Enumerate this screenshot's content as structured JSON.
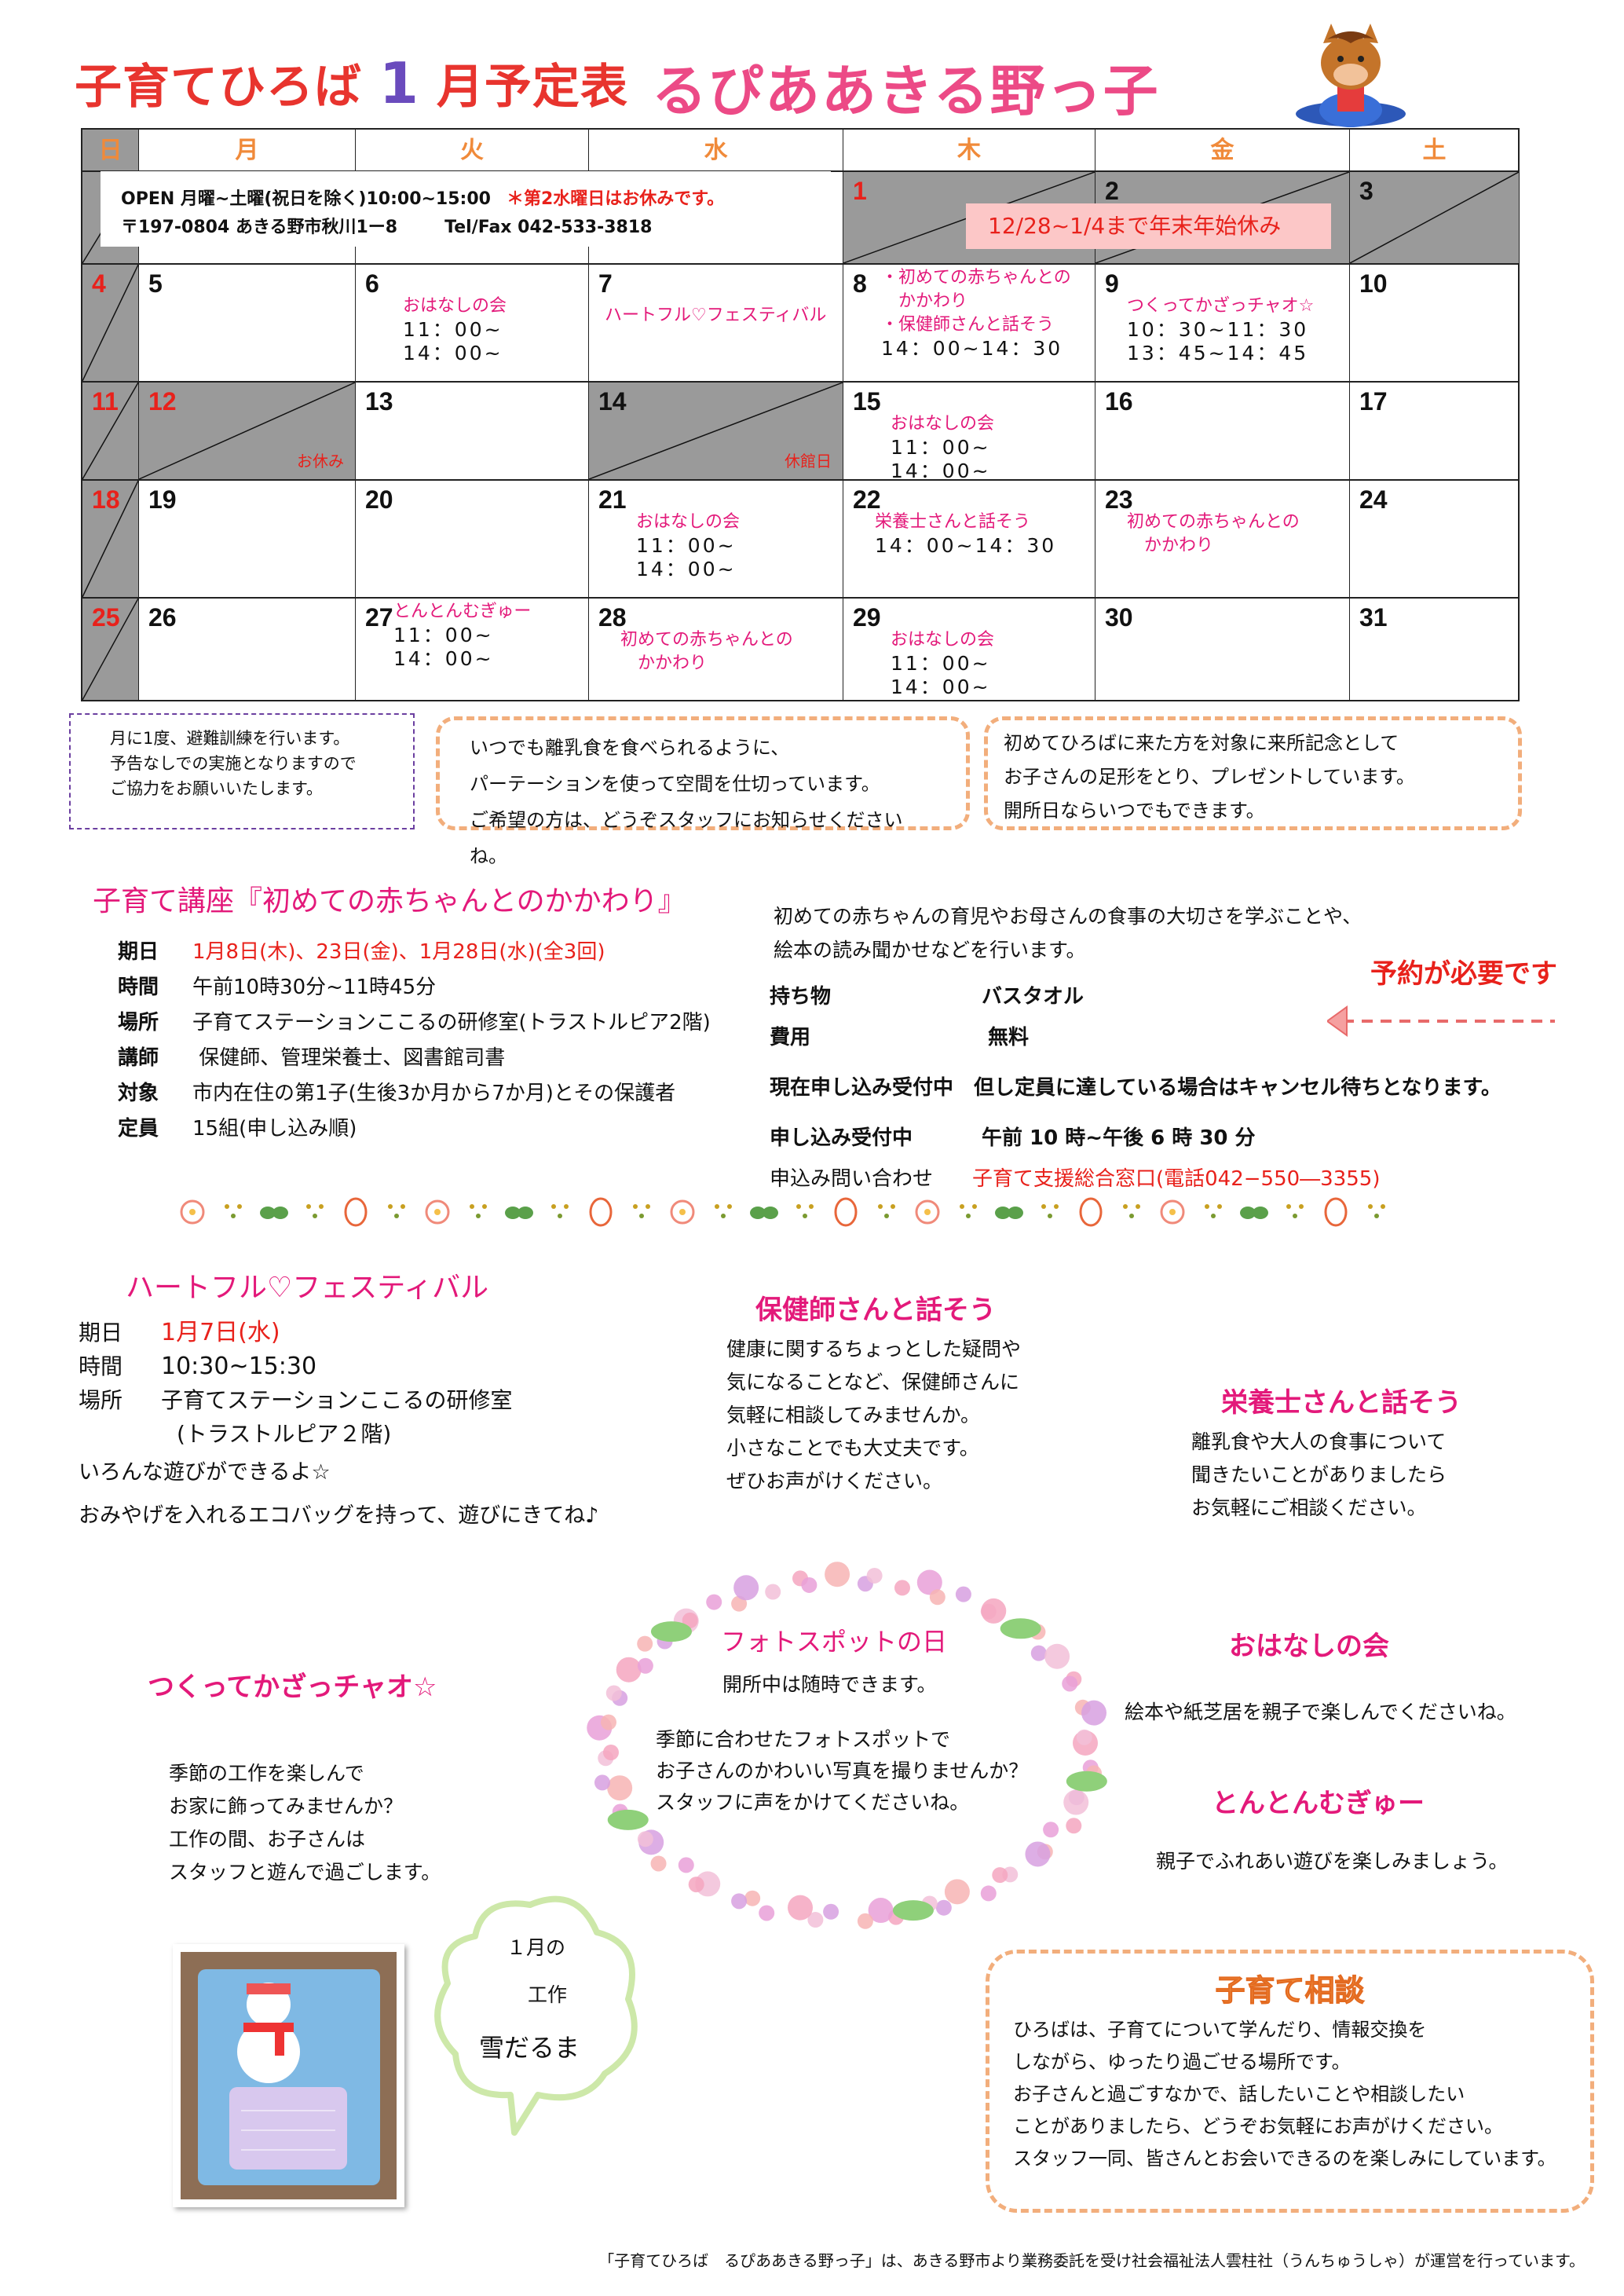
{
  "header": {
    "title_prefix": "子育てひろば",
    "title_month": "1",
    "title_suffix": "月予定表",
    "facility": "るぴああきる野っ子",
    "mascot_icon": "horse-mascot-icon"
  },
  "colors": {
    "pink": "#e3197a",
    "red": "#e8211b",
    "orange": "#f08a3a",
    "shade": "#9a9a9a"
  },
  "calendar": {
    "weekdays": [
      "日",
      "月",
      "火",
      "水",
      "木",
      "金",
      "土"
    ],
    "info": {
      "open": "OPEN 月曜~土曜(祝日を除く)10:00~15:00",
      "closed_note": "＊第2水曜日はお休みです。",
      "address": "〒197-0804 あきる野市秋川1ー8",
      "tel": "Tel/Fax 042-533-3818"
    },
    "holiday_banner": "12/28~1/4まで年末年始休み",
    "weeks": [
      [
        {
          "day": "",
          "shade": true
        },
        {
          "day": ""
        },
        {
          "day": ""
        },
        {
          "day": ""
        },
        {
          "day": "1",
          "red": true,
          "shade": true
        },
        {
          "day": "2",
          "shade": true
        },
        {
          "day": "3",
          "shade": true
        }
      ],
      [
        {
          "day": "4",
          "red": true,
          "shade": true
        },
        {
          "day": "5"
        },
        {
          "day": "6",
          "events": [
            {
              "t": "おはなしの会",
              "c": "pk"
            },
            {
              "t": "11：00~",
              "c": "tm"
            },
            {
              "t": "14：00~",
              "c": "tm"
            }
          ]
        },
        {
          "day": "7",
          "events": [
            {
              "t": "ハートフル♡フェスティバル",
              "c": "pk"
            }
          ]
        },
        {
          "day": "8",
          "events": [
            {
              "t": "・初めての赤ちゃんとの",
              "c": "pk"
            },
            {
              "t": "　かかわり",
              "c": "pk"
            },
            {
              "t": "・保健師さんと話そう",
              "c": "pk"
            },
            {
              "t": "14：00~14：30",
              "c": "tm"
            }
          ]
        },
        {
          "day": "9",
          "events": [
            {
              "t": "つくってかざっチャオ☆",
              "c": "pk"
            },
            {
              "t": "10：30~11：30",
              "c": "tm"
            },
            {
              "t": "13：45~14：45",
              "c": "tm"
            }
          ]
        },
        {
          "day": "10"
        }
      ],
      [
        {
          "day": "11",
          "red": true,
          "shade": true
        },
        {
          "day": "12",
          "red": true,
          "shade": true,
          "events": [
            {
              "t": "お休み",
              "c": "rd"
            }
          ]
        },
        {
          "day": "13"
        },
        {
          "day": "14",
          "shade": true,
          "events": [
            {
              "t": "休館日",
              "c": "rd"
            }
          ]
        },
        {
          "day": "15",
          "events": [
            {
              "t": "おはなしの会",
              "c": "pk"
            },
            {
              "t": "11：00~",
              "c": "tm"
            },
            {
              "t": "14：00~",
              "c": "tm"
            }
          ]
        },
        {
          "day": "16"
        },
        {
          "day": "17"
        }
      ],
      [
        {
          "day": "18",
          "red": true,
          "shade": true
        },
        {
          "day": "19"
        },
        {
          "day": "20"
        },
        {
          "day": "21",
          "events": [
            {
              "t": "おはなしの会",
              "c": "pk"
            },
            {
              "t": "11：00~",
              "c": "tm"
            },
            {
              "t": "14：00~",
              "c": "tm"
            }
          ]
        },
        {
          "day": "22",
          "events": [
            {
              "t": "栄養士さんと話そう",
              "c": "pk"
            },
            {
              "t": "14：00~14：30",
              "c": "tm"
            }
          ]
        },
        {
          "day": "23",
          "events": [
            {
              "t": "初めての赤ちゃんとの",
              "c": "pk"
            },
            {
              "t": "　かかわり",
              "c": "pk"
            }
          ]
        },
        {
          "day": "24"
        }
      ],
      [
        {
          "day": "25",
          "red": true,
          "shade": true
        },
        {
          "day": "26"
        },
        {
          "day": "27",
          "events": [
            {
              "t": "とんとんむぎゅー",
              "c": "pk"
            },
            {
              "t": "11：00~",
              "c": "tm"
            },
            {
              "t": "14：00~",
              "c": "tm"
            }
          ]
        },
        {
          "day": "28",
          "events": [
            {
              "t": "初めての赤ちゃんとの",
              "c": "pk"
            },
            {
              "t": "　かかわり",
              "c": "pk"
            }
          ]
        },
        {
          "day": "29",
          "events": [
            {
              "t": "おはなしの会",
              "c": "pk"
            },
            {
              "t": "11：00~",
              "c": "tm"
            },
            {
              "t": "14：00~",
              "c": "tm"
            }
          ]
        },
        {
          "day": "30"
        },
        {
          "day": "31"
        }
      ]
    ]
  },
  "notices": {
    "drill": [
      "月に1度、避難訓練を行います。",
      "予告なしでの実施となりますので",
      "ご協力をお願いいたします。"
    ],
    "baby_food": [
      "いつでも離乳食を食べられるように、",
      "パーテーションを使って空間を仕切っています。",
      "ご希望の方は、どうぞスタッフにお知らせくださいね。"
    ],
    "footprint": [
      "初めてひろばに来た方を対象に来所記念として",
      "お子さんの足形をとり、プレゼントしています。",
      "開所日ならいつでもできます。"
    ]
  },
  "course": {
    "title": "子育て講座『初めての赤ちゃんとのかかわり』",
    "rows": [
      {
        "k": "期日",
        "v": "1月8日(木)、23日(金)、1月28日(水)(全3回)"
      },
      {
        "k": "時間",
        "v": "午前10時30分~11時45分"
      },
      {
        "k": "場所",
        "v": "子育てステーションここるの研修室(トラストルピア2階)"
      },
      {
        "k": "講師",
        "v": " 保健師、管理栄養士、図書館司書"
      },
      {
        "k": "対象",
        "v": "市内在住の第1子(生後3か月から7か月)とその保護者"
      },
      {
        "k": "定員",
        "v": "15組(申し込み順)"
      }
    ],
    "desc": [
      "初めての赤ちゃんの育児やお母さんの食事の大切さを学ぶことや、",
      "絵本の読み聞かせなどを行います。"
    ],
    "bring_label": "持ち物",
    "bring": "バスタオル",
    "fee_label": "費用",
    "fee": "無料",
    "reserve_note": "予約が必要です",
    "status_label": "現在申し込み受付中",
    "status": "但し定員に達している場合はキャンセル待ちとなります。",
    "hours_label": "申し込み受付中",
    "hours": "午前 10 時~午後 6 時 30 分",
    "contact_label": "申込み問い合わせ",
    "contact": "子育て支援総合窓口(電話042−550―3355)"
  },
  "heartful": {
    "title": "ハートフル♡フェスティバル",
    "date_label": "期日",
    "date": "1月7日(水)",
    "time_label": "時間",
    "time": "10:30~15:30",
    "place_label": "場所",
    "place": "子育てステーションここるの研修室",
    "place2": "(トラストルピア２階)",
    "line1": "いろんな遊びができるよ☆",
    "line2": "おみやげを入れるエコバッグを持って、遊びにきてね♪"
  },
  "hokenshi": {
    "title": "保健師さんと話そう",
    "lines": [
      "健康に関するちょっとした疑問や",
      "気になることなど、保健師さんに",
      "気軽に相談してみませんか。",
      "小さなことでも大丈夫です。",
      "ぜひお声がけください。"
    ]
  },
  "eiyoushi": {
    "title": "栄養士さんと話そう",
    "lines": [
      "離乳食や大人の食事について",
      "聞きたいことがありましたら",
      "お気軽にご相談ください。"
    ]
  },
  "photospot": {
    "title": "フォトスポットの日",
    "sub": "開所中は随時できます。",
    "lines": [
      "季節に合わせたフォトスポットで",
      "お子さんのかわいい写真を撮りませんか？",
      "スタッフに声をかけてくださいね。"
    ]
  },
  "ohanashi": {
    "title": "おはなしの会",
    "body": "絵本や紙芝居を親子で楽しんでくださいね。"
  },
  "tonton": {
    "title": "とんとんむぎゅー",
    "body": "親子でふれあい遊びを楽しみましょう。"
  },
  "chao": {
    "title": "つくってかざっチャオ☆",
    "lines": [
      "季節の工作を楽しんで",
      "お家に飾ってみませんか？",
      "工作の間、お子さんは",
      "スタッフと遊んで過ごします。"
    ]
  },
  "craft": {
    "line1": "１月の",
    "line2": "工作",
    "name": "雪だるま"
  },
  "soudan": {
    "title": "子育て相談",
    "lines": [
      "ひろばは、子育てについて学んだり、情報交換を",
      "しながら、ゆったり過ごせる場所です。",
      "お子さんと過ごすなかで、話したいことや相談したい",
      "ことがありましたら、どうぞお気軽にお声がけください。",
      "スタッフ一同、皆さんとお会いできるのを楽しみにしています。"
    ]
  },
  "footer": "「子育てひろば　るぴああきる野っ子」は、あきる野市より業務委託を受け社会福祉法人雲柱社（うんちゅうしゃ）が運営を行っています。"
}
